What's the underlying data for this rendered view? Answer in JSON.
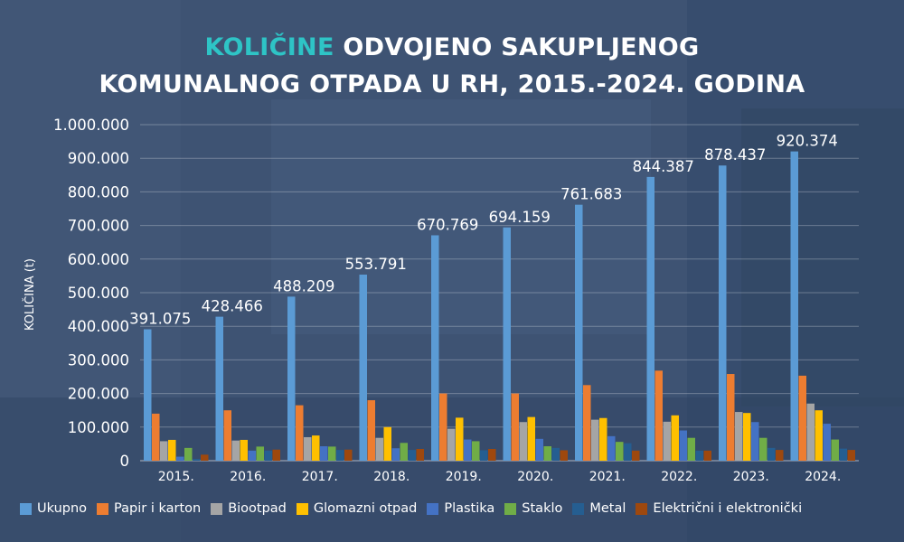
{
  "title": {
    "highlight": "KOLIČINE",
    "line1_rest": " ODVOJENO SAKUPLJENOG",
    "line2": "KOMUNALNOG OTPADA U RH, 2015.-2024. GODINA"
  },
  "colors": {
    "highlight": "#2ec4c6",
    "background": "#3d5272",
    "text": "#ffffff"
  },
  "chart_data": {
    "type": "bar",
    "title": "KOLIČINE ODVOJENO SAKUPLJENOG KOMUNALNOG OTPADA U RH, 2015.-2024. GODINA",
    "ylabel": "KOLIČINA (t)",
    "xlabel": "",
    "ylim": [
      0,
      1000000
    ],
    "y_ticks": [
      "0",
      "100.000",
      "200.000",
      "300.000",
      "400.000",
      "500.000",
      "600.000",
      "700.000",
      "800.000",
      "900.000",
      "1.000.000"
    ],
    "grid": true,
    "legend_position": "bottom",
    "categories": [
      "2015.",
      "2016.",
      "2017.",
      "2018.",
      "2019.",
      "2020.",
      "2021.",
      "2022.",
      "2023.",
      "2024."
    ],
    "series": [
      {
        "name": "Ukupno",
        "color": "#5b9bd5",
        "values": [
          391075,
          428466,
          488209,
          553791,
          670769,
          694159,
          761683,
          844387,
          878437,
          920374
        ],
        "labels": [
          "391.075",
          "428.466",
          "488.209",
          "553.791",
          "670.769",
          "694.159",
          "761.683",
          "844.387",
          "878.437",
          "920.374"
        ]
      },
      {
        "name": "Papir i karton",
        "color": "#ed7d31",
        "values": [
          140000,
          150000,
          165000,
          180000,
          200000,
          200000,
          225000,
          268000,
          258000,
          253000
        ]
      },
      {
        "name": "Biootpad",
        "color": "#a5a5a5",
        "values": [
          58000,
          60000,
          70000,
          68000,
          95000,
          115000,
          122000,
          116000,
          145000,
          170000
        ]
      },
      {
        "name": "Glomazni otpad",
        "color": "#ffc000",
        "values": [
          62000,
          62000,
          75000,
          100000,
          128000,
          130000,
          127000,
          135000,
          142000,
          150000
        ]
      },
      {
        "name": "Plastika",
        "color": "#4472c4",
        "values": [
          12000,
          30000,
          43000,
          37000,
          63000,
          65000,
          73000,
          90000,
          115000,
          110000
        ]
      },
      {
        "name": "Staklo",
        "color": "#70ad47",
        "values": [
          38000,
          42000,
          42000,
          53000,
          58000,
          43000,
          56000,
          68000,
          68000,
          63000
        ]
      },
      {
        "name": "Metal",
        "color": "#255e91",
        "values": [
          5000,
          30000,
          32000,
          32000,
          31000,
          38000,
          52000,
          30000,
          38000,
          36000
        ]
      },
      {
        "name": "Električni i elektronički",
        "color": "#9e480e",
        "values": [
          18000,
          33000,
          33000,
          35000,
          35000,
          31000,
          30000,
          30000,
          32000,
          32000
        ]
      }
    ]
  }
}
